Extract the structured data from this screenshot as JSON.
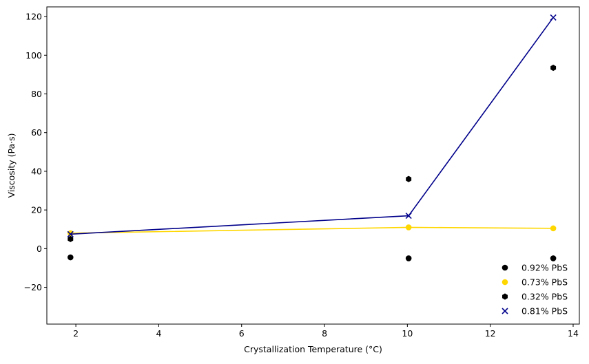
{
  "chart_data": {
    "type": "scatter",
    "title": "",
    "xlabel": "Crystallization Temperature (°C)",
    "ylabel": "Viscosity (Pa·s)",
    "xlim": [
      1.3,
      14.15
    ],
    "ylim": [
      -39,
      125
    ],
    "xticks": [
      2,
      4,
      6,
      8,
      10,
      12,
      14
    ],
    "yticks": [
      -20,
      0,
      20,
      40,
      60,
      80,
      100,
      120
    ],
    "ytick_labels": [
      "−20",
      "0",
      "20",
      "40",
      "60",
      "80",
      "100",
      "120"
    ],
    "grid": false,
    "legend_position": "lower-right",
    "series": [
      {
        "name": "0.92% PbS",
        "marker": "circle",
        "color": "#000000",
        "line": false,
        "points": [
          [
            1.87,
            -4.5
          ],
          [
            10.03,
            -5.0
          ],
          [
            13.52,
            -5.0
          ]
        ]
      },
      {
        "name": "0.73% PbS",
        "marker": "circle",
        "color": "#FFD700",
        "line": true,
        "points": [
          [
            1.87,
            8.0
          ],
          [
            10.03,
            11.0
          ],
          [
            13.52,
            10.5
          ]
        ]
      },
      {
        "name": "0.32% PbS",
        "marker": "hexagon",
        "color": "#000000",
        "line": false,
        "points": [
          [
            1.87,
            5.0
          ],
          [
            10.03,
            36.0
          ],
          [
            13.52,
            93.5
          ]
        ]
      },
      {
        "name": "0.81% PbS",
        "marker": "x",
        "color": "#00008B",
        "line": true,
        "points": [
          [
            1.87,
            7.5
          ],
          [
            10.03,
            17.0
          ],
          [
            13.52,
            119.5
          ]
        ]
      }
    ]
  }
}
